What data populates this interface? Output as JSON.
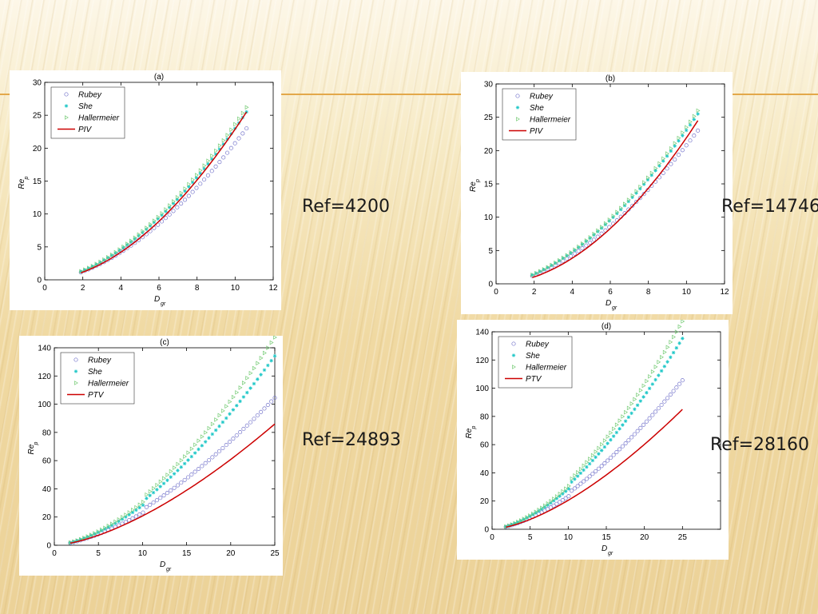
{
  "refs": {
    "a": "Ref=4200",
    "b": "Ref=14746",
    "c": "Ref=24893",
    "d": "Ref=28160"
  },
  "colors": {
    "rubey": "#7777cc",
    "she": "#22c8c8",
    "hallermeier": "#77cc77",
    "measured": "#cc0000",
    "accent_line": "#e3a84a"
  },
  "chart_data": [
    {
      "id": "a",
      "type": "line",
      "title": "(a)",
      "xlabel": "D",
      "xlabel_sub": "gr",
      "ylabel": "Re",
      "ylabel_sub": "p",
      "xlim": [
        0,
        12
      ],
      "ylim": [
        0,
        30
      ],
      "xticks": [
        0,
        2,
        4,
        6,
        8,
        10,
        12
      ],
      "yticks": [
        0,
        5,
        10,
        15,
        20,
        25,
        30
      ],
      "legend_position": "top-left",
      "x_range": [
        1.9,
        10.6
      ],
      "n_markers": 44,
      "x_break": null,
      "marker_jump": 1.0,
      "series": [
        {
          "name": "Rubey",
          "marker": "circle",
          "y_end": 23.0,
          "exponent": 1.75
        },
        {
          "name": "She",
          "marker": "star",
          "y_end": 25.5,
          "exponent": 1.75
        },
        {
          "name": "Hallermeier",
          "marker": "triangle-right",
          "y_end": 26.2,
          "exponent": 1.75
        },
        {
          "name": "PIV",
          "marker": "line",
          "y_end": 25.5,
          "exponent": 1.85
        }
      ]
    },
    {
      "id": "b",
      "type": "line",
      "title": "(b)",
      "xlabel": "D",
      "xlabel_sub": "gr",
      "ylabel": "Re",
      "ylabel_sub": "p",
      "xlim": [
        0,
        12
      ],
      "ylim": [
        0,
        30
      ],
      "xticks": [
        0,
        2,
        4,
        6,
        8,
        10,
        12
      ],
      "yticks": [
        0,
        5,
        10,
        15,
        20,
        25,
        30
      ],
      "legend_position": "top-left",
      "x_range": [
        1.9,
        10.6
      ],
      "n_markers": 44,
      "x_break": null,
      "marker_jump": 1.0,
      "series": [
        {
          "name": "Rubey",
          "marker": "circle",
          "y_end": 23.0,
          "exponent": 1.72
        },
        {
          "name": "She",
          "marker": "star",
          "y_end": 25.5,
          "exponent": 1.72
        },
        {
          "name": "Hallermeier",
          "marker": "triangle-right",
          "y_end": 26.0,
          "exponent": 1.72
        },
        {
          "name": "PIV",
          "marker": "line",
          "y_end": 24.5,
          "exponent": 1.9
        }
      ]
    },
    {
      "id": "c",
      "type": "line",
      "title": "(c)",
      "xlabel": "D",
      "xlabel_sub": "gr",
      "ylabel": "Re",
      "ylabel_sub": "p",
      "xlim": [
        0,
        25
      ],
      "ylim": [
        0,
        140
      ],
      "xticks": [
        0,
        5,
        10,
        15,
        20,
        25
      ],
      "yticks": [
        0,
        20,
        40,
        60,
        80,
        100,
        120,
        140
      ],
      "legend_position": "top-left",
      "x_range": [
        1.8,
        25
      ],
      "n_markers": 60,
      "x_break": 10.3,
      "marker_jump": 1.1,
      "series": [
        {
          "name": "Rubey",
          "marker": "circle",
          "y_end": 95,
          "exponent": 1.55
        },
        {
          "name": "She",
          "marker": "star",
          "y_end": 122,
          "exponent": 1.6
        },
        {
          "name": "Hallermeier",
          "marker": "triangle-right",
          "y_end": 134,
          "exponent": 1.62
        },
        {
          "name": "PTV",
          "marker": "line",
          "y_end": 86,
          "exponent": 1.55
        }
      ]
    },
    {
      "id": "d",
      "type": "line",
      "title": "(d)",
      "xlabel": "D",
      "xlabel_sub": "gr",
      "ylabel": "Re",
      "ylabel_sub": "p",
      "xlim": [
        0,
        30
      ],
      "ylim": [
        0,
        140
      ],
      "xticks": [
        0,
        5,
        10,
        15,
        20,
        25
      ],
      "yticks": [
        0,
        20,
        40,
        60,
        80,
        100,
        120,
        140
      ],
      "legend_position": "top-left",
      "x_range": [
        1.8,
        25
      ],
      "n_markers": 60,
      "x_break": 10.3,
      "marker_jump": 1.1,
      "series": [
        {
          "name": "Rubey",
          "marker": "circle",
          "y_end": 96,
          "exponent": 1.55
        },
        {
          "name": "She",
          "marker": "star",
          "y_end": 123,
          "exponent": 1.6
        },
        {
          "name": "Hallermeier",
          "marker": "triangle-right",
          "y_end": 134,
          "exponent": 1.62
        },
        {
          "name": "PTV",
          "marker": "line",
          "y_end": 85,
          "exponent": 1.55
        }
      ]
    }
  ]
}
